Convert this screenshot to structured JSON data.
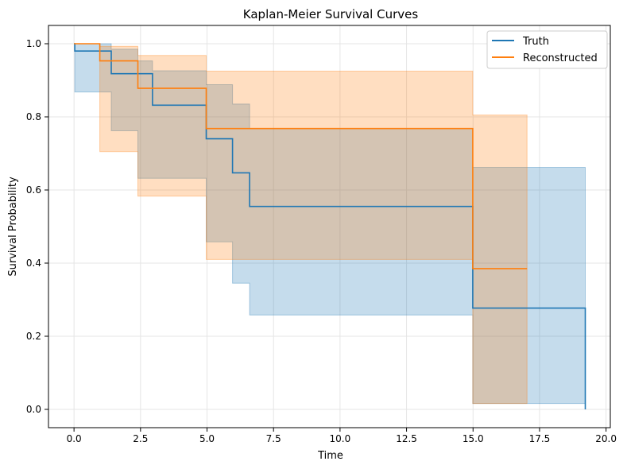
{
  "chart_data": {
    "type": "line",
    "step": "post",
    "title": "Kaplan-Meier Survival Curves",
    "xlabel": "Time",
    "ylabel": "Survival Probability",
    "xlim": [
      -0.96,
      20.16
    ],
    "ylim": [
      -0.05,
      1.05
    ],
    "x_ticks": [
      0.0,
      2.5,
      5.0,
      7.5,
      10.0,
      12.5,
      15.0,
      17.5,
      20.0
    ],
    "x_tick_labels": [
      "0.0",
      "2.5",
      "5.0",
      "7.5",
      "10.0",
      "12.5",
      "15.0",
      "17.5",
      "20.0"
    ],
    "y_ticks": [
      0.0,
      0.2,
      0.4,
      0.6,
      0.8,
      1.0
    ],
    "y_tick_labels": [
      "0.0",
      "0.2",
      "0.4",
      "0.6",
      "0.8",
      "1.0"
    ],
    "grid": true,
    "legend_position": "upper-right",
    "series": [
      {
        "name": "Truth",
        "color": "#1f77b4",
        "x": [
          0.0,
          0.03,
          1.4,
          2.95,
          4.97,
          5.96,
          6.6,
          14.99,
          19.22
        ],
        "y": [
          1.0,
          0.98,
          0.918,
          0.832,
          0.74,
          0.647,
          0.555,
          0.277,
          0.0
        ],
        "ci_lower": [
          1.0,
          0.868,
          0.762,
          0.632,
          0.632,
          0.458,
          0.345,
          0.258,
          0.016,
          0.016
        ],
        "ci_upper": [
          1.0,
          1.0,
          0.985,
          0.953,
          0.926,
          0.888,
          0.835,
          0.768,
          0.662,
          0.662
        ],
        "ci_x": [
          0.0,
          0.03,
          1.4,
          2.4,
          2.95,
          4.97,
          5.96,
          6.6,
          14.99,
          19.22
        ]
      },
      {
        "name": "Reconstructed",
        "color": "#ff7f0e",
        "x": [
          0.0,
          0.97,
          2.4,
          4.97,
          14.99,
          17.03
        ],
        "y": [
          1.0,
          0.953,
          0.878,
          0.768,
          0.385,
          0.385
        ],
        "ci_lower": [
          1.0,
          0.705,
          0.583,
          0.41,
          0.016,
          0.016
        ],
        "ci_upper": [
          1.0,
          0.993,
          0.968,
          0.925,
          0.805,
          0.805
        ],
        "ci_x": [
          0.0,
          0.97,
          2.4,
          4.97,
          14.99,
          17.03
        ]
      }
    ]
  }
}
